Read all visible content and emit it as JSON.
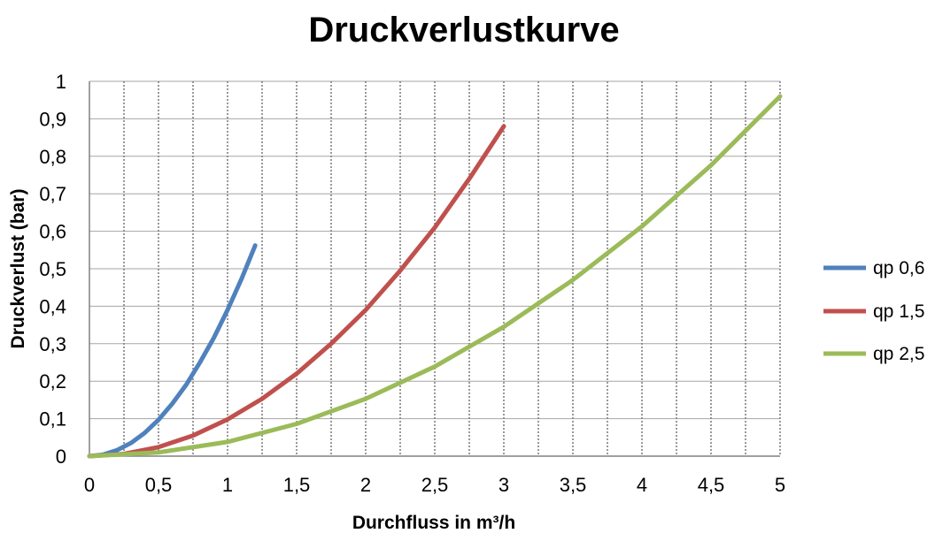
{
  "chart_data": {
    "type": "line",
    "title": "Druckverlustkurve",
    "xlabel": "Durchfluss in m³/h",
    "ylabel": "Druckverlust (bar)",
    "xlim": [
      0,
      5
    ],
    "ylim": [
      0,
      1
    ],
    "x_ticks": [
      0,
      0.5,
      1,
      1.5,
      2,
      2.5,
      3,
      3.5,
      4,
      4.5,
      5
    ],
    "y_ticks": [
      0,
      0.1,
      0.2,
      0.3,
      0.4,
      0.5,
      0.6,
      0.7,
      0.8,
      0.9,
      1
    ],
    "x_tick_labels": [
      "0",
      "0,5",
      "1",
      "1,5",
      "2",
      "2,5",
      "3",
      "3,5",
      "4",
      "4,5",
      "5"
    ],
    "y_tick_labels": [
      "0",
      "0,1",
      "0,2",
      "0,3",
      "0,4",
      "0,5",
      "0,6",
      "0,7",
      "0,8",
      "0,9",
      "1"
    ],
    "grid": {
      "horizontal": true,
      "vertical_dotted": true
    },
    "legend_position": "right",
    "series": [
      {
        "name": "qp 0,6",
        "color": "#4f81bd",
        "x": [
          0,
          0.1,
          0.2,
          0.3,
          0.4,
          0.5,
          0.6,
          0.7,
          0.8,
          0.9,
          1.0,
          1.1,
          1.2
        ],
        "y": [
          0,
          0.004,
          0.016,
          0.035,
          0.062,
          0.097,
          0.14,
          0.19,
          0.25,
          0.315,
          0.39,
          0.472,
          0.562
        ]
      },
      {
        "name": "qp 1,5",
        "color": "#c0504d",
        "x": [
          0,
          0.25,
          0.5,
          0.75,
          1.0,
          1.25,
          1.5,
          1.75,
          2.0,
          2.25,
          2.5,
          2.75,
          3.0
        ],
        "y": [
          0,
          0.006,
          0.024,
          0.055,
          0.098,
          0.153,
          0.22,
          0.3,
          0.39,
          0.495,
          0.61,
          0.74,
          0.88
        ]
      },
      {
        "name": "qp 2,5",
        "color": "#9bbb59",
        "x": [
          0,
          0.5,
          1.0,
          1.5,
          2.0,
          2.5,
          3.0,
          3.5,
          4.0,
          4.5,
          5.0
        ],
        "y": [
          0,
          0.01,
          0.038,
          0.086,
          0.153,
          0.239,
          0.345,
          0.47,
          0.613,
          0.776,
          0.96
        ]
      }
    ]
  }
}
